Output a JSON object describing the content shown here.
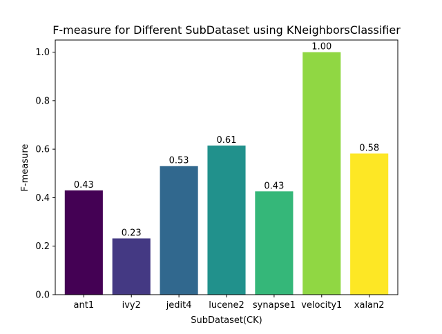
{
  "chart_data": {
    "type": "bar",
    "title": "F-measure for Different SubDataset using KNeighborsClassifier",
    "xlabel": "SubDataset(CK)",
    "ylabel": "F-measure",
    "categories": [
      "ant1",
      "ivy2",
      "jedit4",
      "lucene2",
      "synapse1",
      "velocity1",
      "xalan2"
    ],
    "values": [
      0.43,
      0.232,
      0.53,
      0.615,
      0.426,
      1.0,
      0.582
    ],
    "value_labels": [
      "0.43",
      "0.23",
      "0.53",
      "0.61",
      "0.43",
      "1.00",
      "0.58"
    ],
    "colors": [
      "#440154",
      "#443983",
      "#31688e",
      "#21918c",
      "#35b779",
      "#90d743",
      "#fde725"
    ],
    "ylim": [
      0,
      1.05
    ],
    "yticks": [
      0.0,
      0.2,
      0.4,
      0.6,
      0.8,
      1.0
    ],
    "ytick_labels": [
      "0.0",
      "0.2",
      "0.4",
      "0.6",
      "0.8",
      "1.0"
    ],
    "grid": false,
    "legend": "none"
  }
}
